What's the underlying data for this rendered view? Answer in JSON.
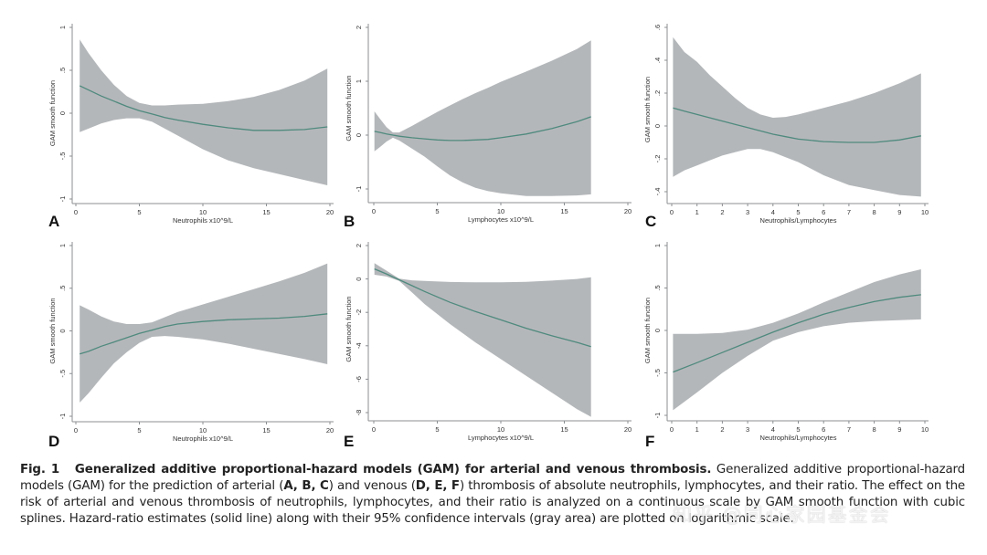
{
  "chart_data": [
    {
      "id": "A",
      "type": "area",
      "panel_label": "A",
      "xlabel": "Neutrophils x10^9/L",
      "ylabel": "GAM smooth function",
      "xlim": [
        0,
        20
      ],
      "ylim": [
        -1,
        1
      ],
      "xticks": [
        0,
        5,
        10,
        15,
        20
      ],
      "xtick_labels": [
        "0",
        "5",
        "10",
        "15",
        "20"
      ],
      "yticks": [
        -1,
        -0.5,
        0,
        0.5,
        1
      ],
      "ytick_labels": [
        "-1",
        "-.5",
        "0",
        ".5",
        "1"
      ],
      "x": [
        0.3,
        1,
        2,
        3,
        4,
        5,
        6,
        7,
        8,
        10,
        12,
        14,
        16,
        18,
        19.8
      ],
      "fit": [
        0.32,
        0.27,
        0.2,
        0.14,
        0.08,
        0.03,
        -0.01,
        -0.05,
        -0.08,
        -0.13,
        -0.17,
        -0.2,
        -0.2,
        -0.19,
        -0.16
      ],
      "upper": [
        0.86,
        0.7,
        0.5,
        0.33,
        0.2,
        0.12,
        0.09,
        0.09,
        0.1,
        0.11,
        0.14,
        0.19,
        0.27,
        0.38,
        0.52
      ],
      "lower": [
        -0.22,
        -0.18,
        -0.12,
        -0.08,
        -0.06,
        -0.06,
        -0.1,
        -0.18,
        -0.26,
        -0.42,
        -0.55,
        -0.64,
        -0.71,
        -0.78,
        -0.84
      ]
    },
    {
      "id": "B",
      "type": "area",
      "panel_label": "B",
      "xlabel": "Lymphocytes x10^9/L",
      "ylabel": "GAM smooth function",
      "xlim": [
        0,
        20
      ],
      "ylim": [
        -1,
        2
      ],
      "xticks": [
        0,
        5,
        10,
        15,
        20
      ],
      "xtick_labels": [
        "0",
        "5",
        "10",
        "15",
        "20"
      ],
      "yticks": [
        -1,
        0,
        1,
        2
      ],
      "ytick_labels": [
        "-1",
        "0",
        "1",
        "2"
      ],
      "x": [
        0.05,
        0.5,
        1,
        1.5,
        2,
        3,
        4,
        5,
        6,
        7,
        8,
        9,
        10,
        12,
        14,
        16,
        17.1
      ],
      "fit": [
        0.07,
        0.05,
        0.02,
        0.0,
        -0.02,
        -0.05,
        -0.07,
        -0.09,
        -0.1,
        -0.1,
        -0.09,
        -0.08,
        -0.05,
        0.02,
        0.12,
        0.25,
        0.34
      ],
      "upper": [
        0.44,
        0.3,
        0.15,
        0.05,
        0.05,
        0.17,
        0.3,
        0.43,
        0.55,
        0.67,
        0.78,
        0.88,
        0.99,
        1.18,
        1.38,
        1.6,
        1.76
      ],
      "lower": [
        -0.3,
        -0.22,
        -0.12,
        -0.05,
        -0.1,
        -0.25,
        -0.4,
        -0.58,
        -0.75,
        -0.88,
        -0.98,
        -1.04,
        -1.08,
        -1.13,
        -1.13,
        -1.12,
        -1.1
      ]
    },
    {
      "id": "C",
      "type": "area",
      "panel_label": "C",
      "xlabel": "Neutrophils/Lymphocytes",
      "ylabel": "GAM smooth function",
      "xlim": [
        0,
        10
      ],
      "ylim": [
        -0.4,
        0.6
      ],
      "xticks": [
        0,
        1,
        2,
        3,
        4,
        5,
        6,
        7,
        8,
        9,
        10
      ],
      "xtick_labels": [
        "0",
        "1",
        "2",
        "3",
        "4",
        "5",
        "6",
        "7",
        "8",
        "9",
        "10"
      ],
      "yticks": [
        -0.4,
        -0.2,
        0,
        0.2,
        0.4,
        0.6
      ],
      "ytick_labels": [
        "-.4",
        "-.2",
        "0",
        ".2",
        ".4",
        ".6"
      ],
      "x": [
        0.05,
        0.5,
        1,
        1.5,
        2,
        2.5,
        3,
        3.5,
        4,
        4.5,
        5,
        6,
        7,
        8,
        9,
        9.85
      ],
      "fit": [
        0.11,
        0.09,
        0.07,
        0.05,
        0.03,
        0.01,
        -0.01,
        -0.03,
        -0.05,
        -0.065,
        -0.08,
        -0.095,
        -0.1,
        -0.1,
        -0.085,
        -0.06
      ],
      "upper": [
        0.54,
        0.45,
        0.39,
        0.31,
        0.24,
        0.17,
        0.11,
        0.07,
        0.05,
        0.055,
        0.07,
        0.11,
        0.15,
        0.2,
        0.26,
        0.32
      ],
      "lower": [
        -0.31,
        -0.27,
        -0.24,
        -0.21,
        -0.18,
        -0.16,
        -0.14,
        -0.14,
        -0.16,
        -0.19,
        -0.22,
        -0.3,
        -0.36,
        -0.39,
        -0.42,
        -0.43
      ]
    },
    {
      "id": "D",
      "type": "area",
      "panel_label": "D",
      "xlabel": "Neutrophils x10^9/L",
      "ylabel": "GAM smooth function",
      "xlim": [
        0,
        20
      ],
      "ylim": [
        -1,
        1
      ],
      "xticks": [
        0,
        5,
        10,
        15,
        20
      ],
      "xtick_labels": [
        "0",
        "5",
        "10",
        "15",
        "20"
      ],
      "yticks": [
        -1,
        -0.5,
        0,
        0.5,
        1
      ],
      "ytick_labels": [
        "-1",
        "-.5",
        "0",
        ".5",
        "1"
      ],
      "x": [
        0.3,
        1,
        2,
        3,
        4,
        5,
        6,
        7,
        8,
        10,
        12,
        14,
        16,
        18,
        19.8
      ],
      "fit": [
        -0.27,
        -0.24,
        -0.18,
        -0.13,
        -0.08,
        -0.03,
        0.01,
        0.05,
        0.08,
        0.11,
        0.13,
        0.14,
        0.15,
        0.17,
        0.2
      ],
      "upper": [
        0.3,
        0.25,
        0.17,
        0.11,
        0.08,
        0.08,
        0.1,
        0.16,
        0.22,
        0.31,
        0.4,
        0.49,
        0.58,
        0.68,
        0.79
      ],
      "lower": [
        -0.84,
        -0.73,
        -0.55,
        -0.38,
        -0.25,
        -0.14,
        -0.07,
        -0.06,
        -0.07,
        -0.1,
        -0.15,
        -0.21,
        -0.27,
        -0.33,
        -0.39
      ]
    },
    {
      "id": "E",
      "type": "area",
      "panel_label": "E",
      "xlabel": "Lymphocytes x10^9/L",
      "ylabel": "GAM smooth function",
      "xlim": [
        0,
        20
      ],
      "ylim": [
        -8,
        2
      ],
      "xticks": [
        0,
        5,
        10,
        15,
        20
      ],
      "xtick_labels": [
        "0",
        "5",
        "10",
        "15",
        "20"
      ],
      "yticks": [
        -8,
        -6,
        -4,
        -2,
        0,
        2
      ],
      "ytick_labels": [
        "-8",
        "-6",
        "-4",
        "-2",
        "0",
        "2"
      ],
      "x": [
        0.05,
        1,
        2,
        3,
        4,
        6,
        8,
        10,
        12,
        14,
        16,
        17.1
      ],
      "fit": [
        0.6,
        0.3,
        -0.05,
        -0.4,
        -0.75,
        -1.4,
        -1.95,
        -2.45,
        -2.95,
        -3.4,
        -3.8,
        -4.05
      ],
      "upper": [
        0.95,
        0.5,
        0.02,
        -0.08,
        -0.12,
        -0.18,
        -0.2,
        -0.2,
        -0.17,
        -0.1,
        0.0,
        0.1
      ],
      "lower": [
        0.25,
        0.15,
        -0.12,
        -0.8,
        -1.5,
        -2.7,
        -3.8,
        -4.8,
        -5.8,
        -6.8,
        -7.8,
        -8.25
      ]
    },
    {
      "id": "F",
      "type": "area",
      "panel_label": "F",
      "xlabel": "Neutrophils/Lymphocytes",
      "ylabel": "GAM smooth function",
      "xlim": [
        0,
        10
      ],
      "ylim": [
        -1,
        1
      ],
      "xticks": [
        0,
        1,
        2,
        3,
        4,
        5,
        6,
        7,
        8,
        9,
        10
      ],
      "xtick_labels": [
        "0",
        "1",
        "2",
        "3",
        "4",
        "5",
        "6",
        "7",
        "8",
        "9",
        "10"
      ],
      "yticks": [
        -1,
        -0.5,
        0,
        0.5,
        1
      ],
      "ytick_labels": [
        "-1",
        "-.5",
        "0",
        ".5",
        "1"
      ],
      "x": [
        0.05,
        1,
        2,
        3,
        4,
        5,
        6,
        7,
        8,
        9,
        9.85
      ],
      "fit": [
        -0.49,
        -0.38,
        -0.26,
        -0.14,
        -0.02,
        0.09,
        0.19,
        0.27,
        0.34,
        0.39,
        0.42
      ],
      "upper": [
        -0.04,
        -0.04,
        -0.03,
        0.01,
        0.09,
        0.2,
        0.33,
        0.45,
        0.57,
        0.66,
        0.72
      ],
      "lower": [
        -0.94,
        -0.73,
        -0.5,
        -0.3,
        -0.12,
        -0.02,
        0.05,
        0.09,
        0.11,
        0.12,
        0.13
      ]
    }
  ],
  "colors": {
    "band": "#b4b7ba",
    "line": "#4f8a7e",
    "axis": "#8c8f92"
  },
  "caption": {
    "fig_label": "Fig. 1",
    "title": "Generalized additive proportional-hazard models (GAM) for arterial and venous thrombosis.",
    "text_1": " Generalized additive proportional-hazard models (GAM) for the prediction of arterial (",
    "arterial_panels": "A, B, C",
    "text_2": ") and venous (",
    "venous_panels": "D, E, F",
    "text_3": ") thrombosis of absolute neutrophils, lymphocytes, and their ratio. The effect on the risk of arterial and venous thrombosis of neutrophils, lymphocytes, and their ratio is analyzed on a continuous scale by GAM smooth function with cubic splines. Hazard-ratio estimates (solid line) along with their 95% confidence intervals (gray area) are plotted on logarithmic scale."
  },
  "watermark": "知乎 @同心家园基金会"
}
